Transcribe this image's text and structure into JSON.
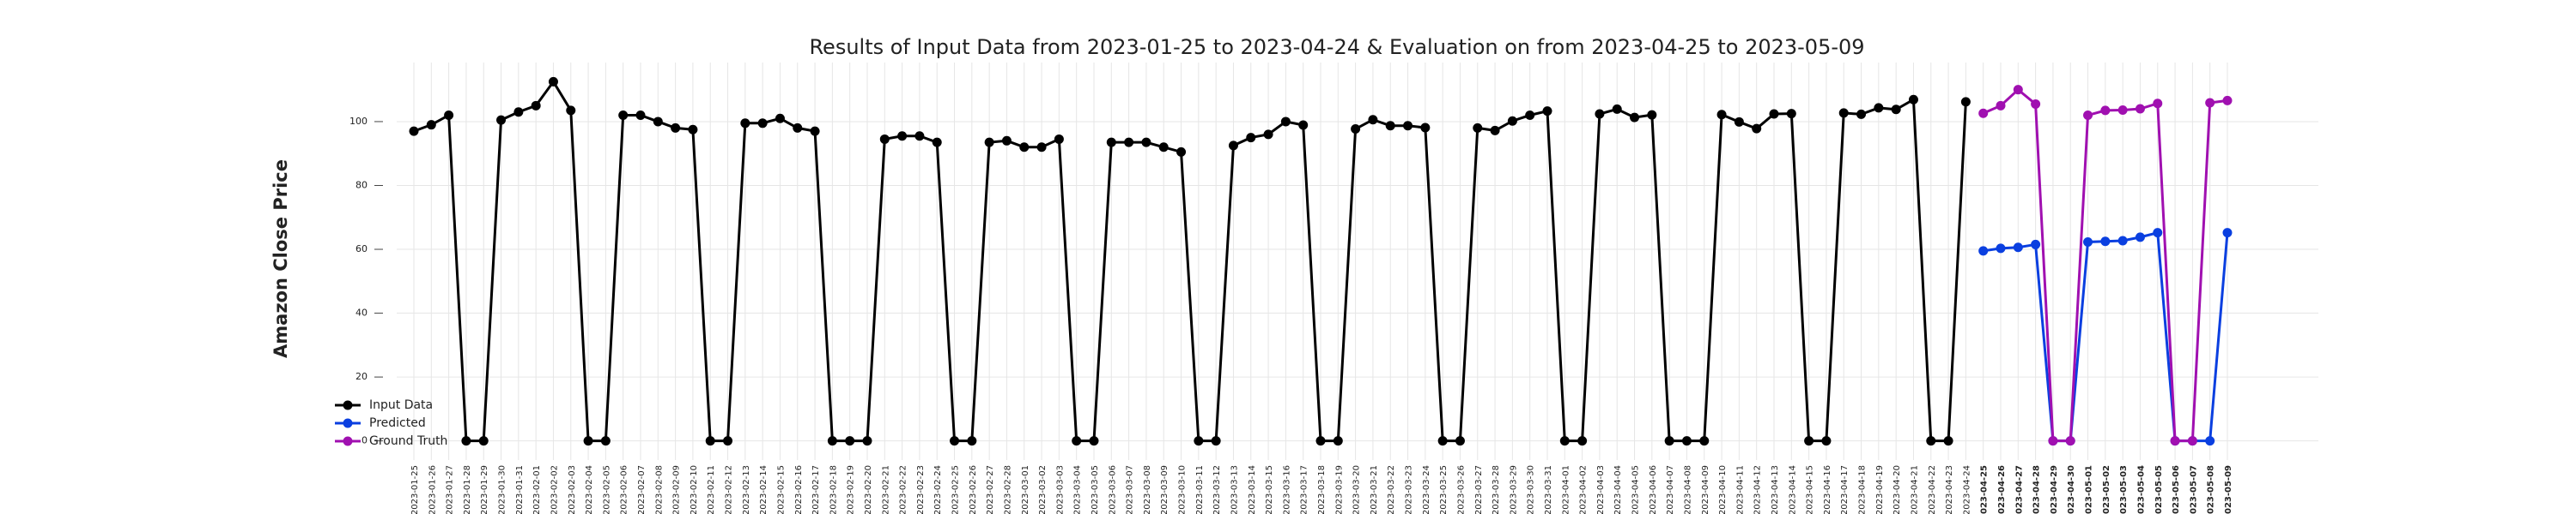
{
  "chart_data": {
    "type": "line",
    "title": "Results of Input Data from 2023-01-25 to 2023-04-24 & Evaluation on from 2023-04-25 to 2023-05-09",
    "y_label": "Amazon Close Price",
    "x": [
      "2023-01-25",
      "2023-01-26",
      "2023-01-27",
      "2023-01-28",
      "2023-01-29",
      "2023-01-30",
      "2023-01-31",
      "2023-02-01",
      "2023-02-02",
      "2023-02-03",
      "2023-02-04",
      "2023-02-05",
      "2023-02-06",
      "2023-02-07",
      "2023-02-08",
      "2023-02-09",
      "2023-02-10",
      "2023-02-11",
      "2023-02-12",
      "2023-02-13",
      "2023-02-14",
      "2023-02-15",
      "2023-02-16",
      "2023-02-17",
      "2023-02-18",
      "2023-02-19",
      "2023-02-20",
      "2023-02-21",
      "2023-02-22",
      "2023-02-23",
      "2023-02-24",
      "2023-02-25",
      "2023-02-26",
      "2023-02-27",
      "2023-02-28",
      "2023-03-01",
      "2023-03-02",
      "2023-03-03",
      "2023-03-04",
      "2023-03-05",
      "2023-03-06",
      "2023-03-07",
      "2023-03-08",
      "2023-03-09",
      "2023-03-10",
      "2023-03-11",
      "2023-03-12",
      "2023-03-13",
      "2023-03-14",
      "2023-03-15",
      "2023-03-16",
      "2023-03-17",
      "2023-03-18",
      "2023-03-19",
      "2023-03-20",
      "2023-03-21",
      "2023-03-22",
      "2023-03-23",
      "2023-03-24",
      "2023-03-25",
      "2023-03-26",
      "2023-03-27",
      "2023-03-28",
      "2023-03-29",
      "2023-03-30",
      "2023-03-31",
      "2023-04-01",
      "2023-04-02",
      "2023-04-03",
      "2023-04-04",
      "2023-04-05",
      "2023-04-06",
      "2023-04-07",
      "2023-04-08",
      "2023-04-09",
      "2023-04-10",
      "2023-04-11",
      "2023-04-12",
      "2023-04-13",
      "2023-04-14",
      "2023-04-15",
      "2023-04-16",
      "2023-04-17",
      "2023-04-18",
      "2023-04-19",
      "2023-04-20",
      "2023-04-21",
      "2023-04-22",
      "2023-04-23",
      "2023-04-24",
      "2023-04-25",
      "2023-04-26",
      "2023-04-27",
      "2023-04-28",
      "2023-04-29",
      "2023-04-30",
      "2023-05-01",
      "2023-05-02",
      "2023-05-03",
      "2023-05-04",
      "2023-05-05",
      "2023-05-06",
      "2023-05-07",
      "2023-05-08",
      "2023-05-09"
    ],
    "series": [
      {
        "name": "Input Data",
        "color": "#000000",
        "values": [
          97,
          99,
          102,
          0,
          0,
          100.5,
          103,
          105,
          112.5,
          103.5,
          0,
          0,
          102,
          102,
          100,
          98,
          97.5,
          0,
          0,
          99.5,
          99.5,
          101,
          98,
          97,
          0,
          0,
          0,
          94.5,
          95.5,
          95.5,
          93.5,
          0,
          0,
          93.5,
          94,
          92,
          92,
          94.5,
          0,
          0,
          93.5,
          93.5,
          93.5,
          92,
          90.5,
          0,
          0,
          92.5,
          95,
          96,
          100,
          98.9,
          0,
          0,
          97.7,
          100.6,
          98.7,
          98.7,
          98.1,
          0,
          0,
          98,
          97.2,
          100.2,
          102,
          103.3,
          0,
          0,
          102.4,
          103.9,
          101.3,
          102.1,
          0,
          0,
          0,
          102.2,
          99.9,
          97.8,
          102.4,
          102.5,
          0,
          0,
          102.7,
          102.3,
          104.3,
          103.8,
          106.9,
          0,
          0,
          106.2,
          null,
          null,
          null,
          null,
          null,
          null,
          null,
          null,
          null,
          null,
          null,
          null,
          null,
          null,
          null
        ]
      },
      {
        "name": "Predicted",
        "color": "#0a3fe0",
        "values": [
          null,
          null,
          null,
          null,
          null,
          null,
          null,
          null,
          null,
          null,
          null,
          null,
          null,
          null,
          null,
          null,
          null,
          null,
          null,
          null,
          null,
          null,
          null,
          null,
          null,
          null,
          null,
          null,
          null,
          null,
          null,
          null,
          null,
          null,
          null,
          null,
          null,
          null,
          null,
          null,
          null,
          null,
          null,
          null,
          null,
          null,
          null,
          null,
          null,
          null,
          null,
          null,
          null,
          null,
          null,
          null,
          null,
          null,
          null,
          null,
          null,
          null,
          null,
          null,
          null,
          null,
          null,
          null,
          null,
          null,
          null,
          null,
          null,
          null,
          null,
          null,
          null,
          null,
          null,
          null,
          null,
          null,
          null,
          null,
          null,
          null,
          null,
          null,
          null,
          null,
          59.5,
          60.3,
          60.6,
          61.5,
          0,
          0,
          62.3,
          62.5,
          62.7,
          63.8,
          65.2,
          0,
          0,
          0,
          65.2
        ]
      },
      {
        "name": "Ground Truth",
        "color": "#a010b0",
        "values": [
          null,
          null,
          null,
          null,
          null,
          null,
          null,
          null,
          null,
          null,
          null,
          null,
          null,
          null,
          null,
          null,
          null,
          null,
          null,
          null,
          null,
          null,
          null,
          null,
          null,
          null,
          null,
          null,
          null,
          null,
          null,
          null,
          null,
          null,
          null,
          null,
          null,
          null,
          null,
          null,
          null,
          null,
          null,
          null,
          null,
          null,
          null,
          null,
          null,
          null,
          null,
          null,
          null,
          null,
          null,
          null,
          null,
          null,
          null,
          null,
          null,
          null,
          null,
          null,
          null,
          null,
          null,
          null,
          null,
          null,
          null,
          null,
          null,
          null,
          null,
          null,
          null,
          null,
          null,
          null,
          null,
          null,
          null,
          null,
          null,
          null,
          null,
          null,
          null,
          null,
          102.6,
          105,
          110,
          105.5,
          0,
          0,
          102,
          103.5,
          103.6,
          104,
          105.7,
          0,
          0,
          105.9,
          106.6
        ]
      }
    ],
    "ylim": [
      -6,
      118.5
    ],
    "yticks": [
      0,
      20,
      40,
      60,
      80,
      100
    ],
    "grid": true,
    "legend": "lower left"
  }
}
